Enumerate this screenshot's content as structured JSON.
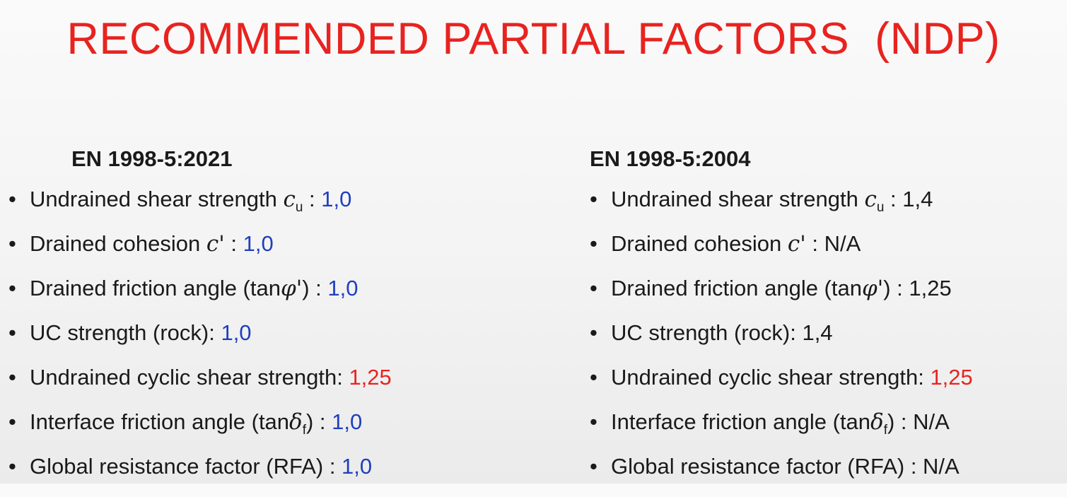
{
  "title": "RECOMMENDED PARTIAL FACTORS  (NDP)",
  "colors": {
    "title": "#e8231f",
    "value_blue": "#1f3fbf",
    "value_red": "#e8231f",
    "text": "#1a1a1a"
  },
  "bullet_glyph": "•",
  "columns": [
    {
      "heading": "EN 1998-5:2021",
      "items": [
        {
          "label": "Undrained shear strength ",
          "symbol": "c",
          "subscript": "u",
          "after": " : ",
          "value": "1,0",
          "value_color": "blue"
        },
        {
          "label": "Drained cohesion ",
          "symbol": "c'",
          "subscript": "",
          "after": " : ",
          "value": "1,0",
          "value_color": "blue"
        },
        {
          "label": "Drained friction angle (tan",
          "symbol": "φ'",
          "subscript": "",
          "after": ") : ",
          "value": "1,0",
          "value_color": "blue"
        },
        {
          "label": "UC strength (rock): ",
          "symbol": "",
          "subscript": "",
          "after": "",
          "value": "1,0",
          "value_color": "blue"
        },
        {
          "label": "Undrained cyclic shear strength: ",
          "symbol": "",
          "subscript": "",
          "after": "",
          "value": "1,25",
          "value_color": "red"
        },
        {
          "label": "Interface friction angle (tan",
          "symbol": "δ",
          "subscript": "f",
          "after": ") : ",
          "value": "1,0",
          "value_color": "blue"
        },
        {
          "label": "Global resistance factor (RFA) : ",
          "symbol": "",
          "subscript": "",
          "after": "",
          "value": "1,0",
          "value_color": "blue"
        }
      ]
    },
    {
      "heading": "EN 1998-5:2004",
      "items": [
        {
          "label": "Undrained shear strength ",
          "symbol": "c",
          "subscript": "u",
          "after": " : ",
          "value": "1,4",
          "value_color": "black"
        },
        {
          "label": "Drained cohesion ",
          "symbol": "c'",
          "subscript": "",
          "after": " : ",
          "value": "N/A",
          "value_color": "black"
        },
        {
          "label": "Drained friction angle (tan",
          "symbol": "φ'",
          "subscript": "",
          "after": ") : ",
          "value": "1,25",
          "value_color": "black"
        },
        {
          "label": "UC strength (rock): ",
          "symbol": "",
          "subscript": "",
          "after": "",
          "value": "1,4",
          "value_color": "black"
        },
        {
          "label": "Undrained cyclic shear strength: ",
          "symbol": "",
          "subscript": "",
          "after": "",
          "value": "1,25",
          "value_color": "red"
        },
        {
          "label": "Interface friction angle (tan",
          "symbol": "δ",
          "subscript": "f",
          "after": ") : ",
          "value": "N/A",
          "value_color": "black"
        },
        {
          "label": "Global resistance factor (RFA) : ",
          "symbol": "",
          "subscript": "",
          "after": "",
          "value": "N/A",
          "value_color": "black"
        }
      ]
    }
  ]
}
